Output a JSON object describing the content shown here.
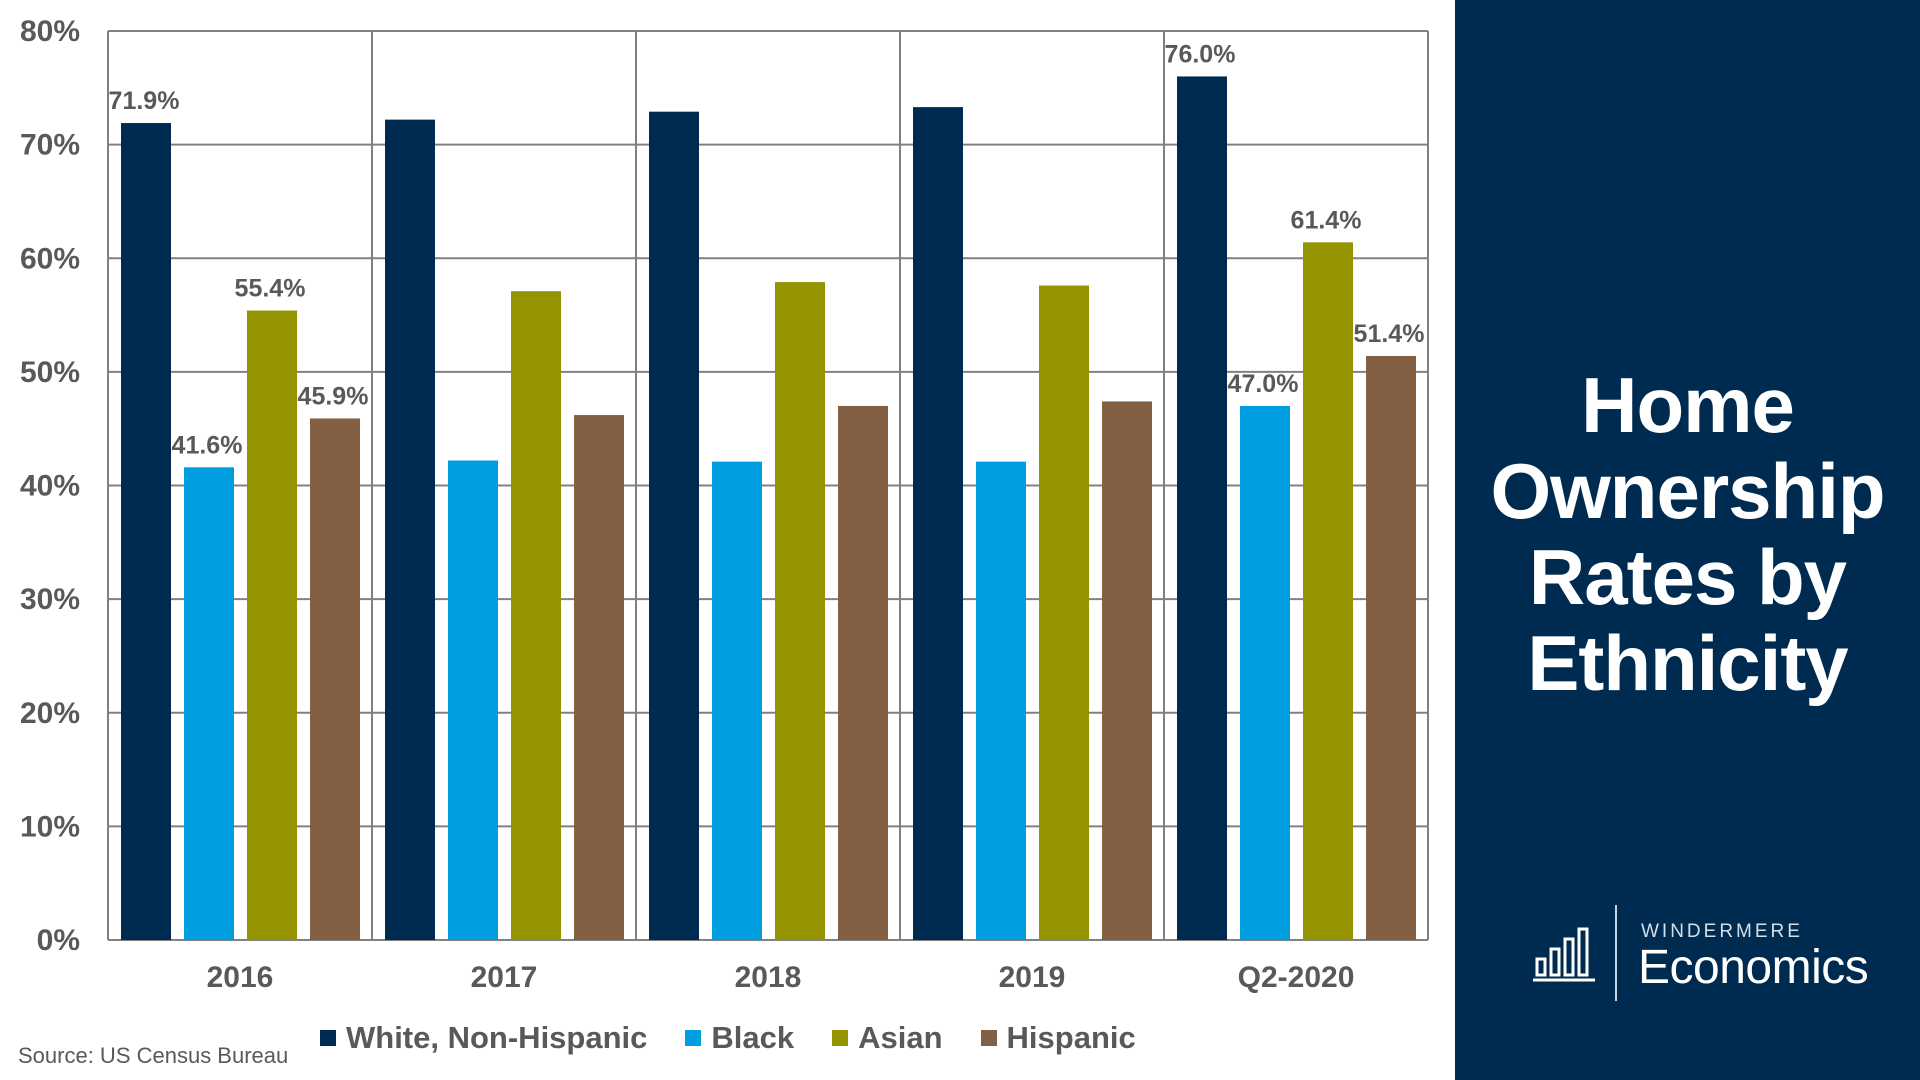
{
  "chart_data": {
    "type": "bar",
    "title": "Home Ownership Rates by Ethnicity",
    "categories": [
      "2016",
      "2017",
      "2018",
      "2019",
      "Q2-2020"
    ],
    "series": [
      {
        "name": "White, Non-Hispanic",
        "color": "#002b51",
        "values": [
          71.9,
          72.2,
          72.9,
          73.3,
          76.0
        ],
        "labels": [
          "71.9%",
          "",
          "",
          "",
          "76.0%"
        ]
      },
      {
        "name": "Black",
        "color": "#009de0",
        "values": [
          41.6,
          42.2,
          42.1,
          42.1,
          47.0
        ],
        "labels": [
          "41.6%",
          "",
          "",
          "",
          "47.0%"
        ]
      },
      {
        "name": "Asian",
        "color": "#939400",
        "values": [
          55.4,
          57.1,
          57.9,
          57.6,
          61.4
        ],
        "labels": [
          "55.4%",
          "",
          "",
          "",
          "61.4%"
        ]
      },
      {
        "name": "Hispanic",
        "color": "#836043",
        "values": [
          45.9,
          46.2,
          47.0,
          47.4,
          51.4
        ],
        "labels": [
          "45.9%",
          "",
          "",
          "",
          "51.4%"
        ]
      }
    ],
    "ylim": [
      0,
      80
    ],
    "yticks": [
      "0%",
      "10%",
      "20%",
      "30%",
      "40%",
      "50%",
      "60%",
      "70%",
      "80%"
    ],
    "grid": true,
    "legend": "bottom",
    "xlabel": "",
    "ylabel": ""
  },
  "panel": {
    "title_lines": [
      "Home",
      "Ownership",
      "Rates by",
      "Ethnicity"
    ],
    "brand": "WINDERMERE",
    "brand_sub": "Economics",
    "background": "#002b51"
  },
  "source": "Source: US Census Bureau"
}
